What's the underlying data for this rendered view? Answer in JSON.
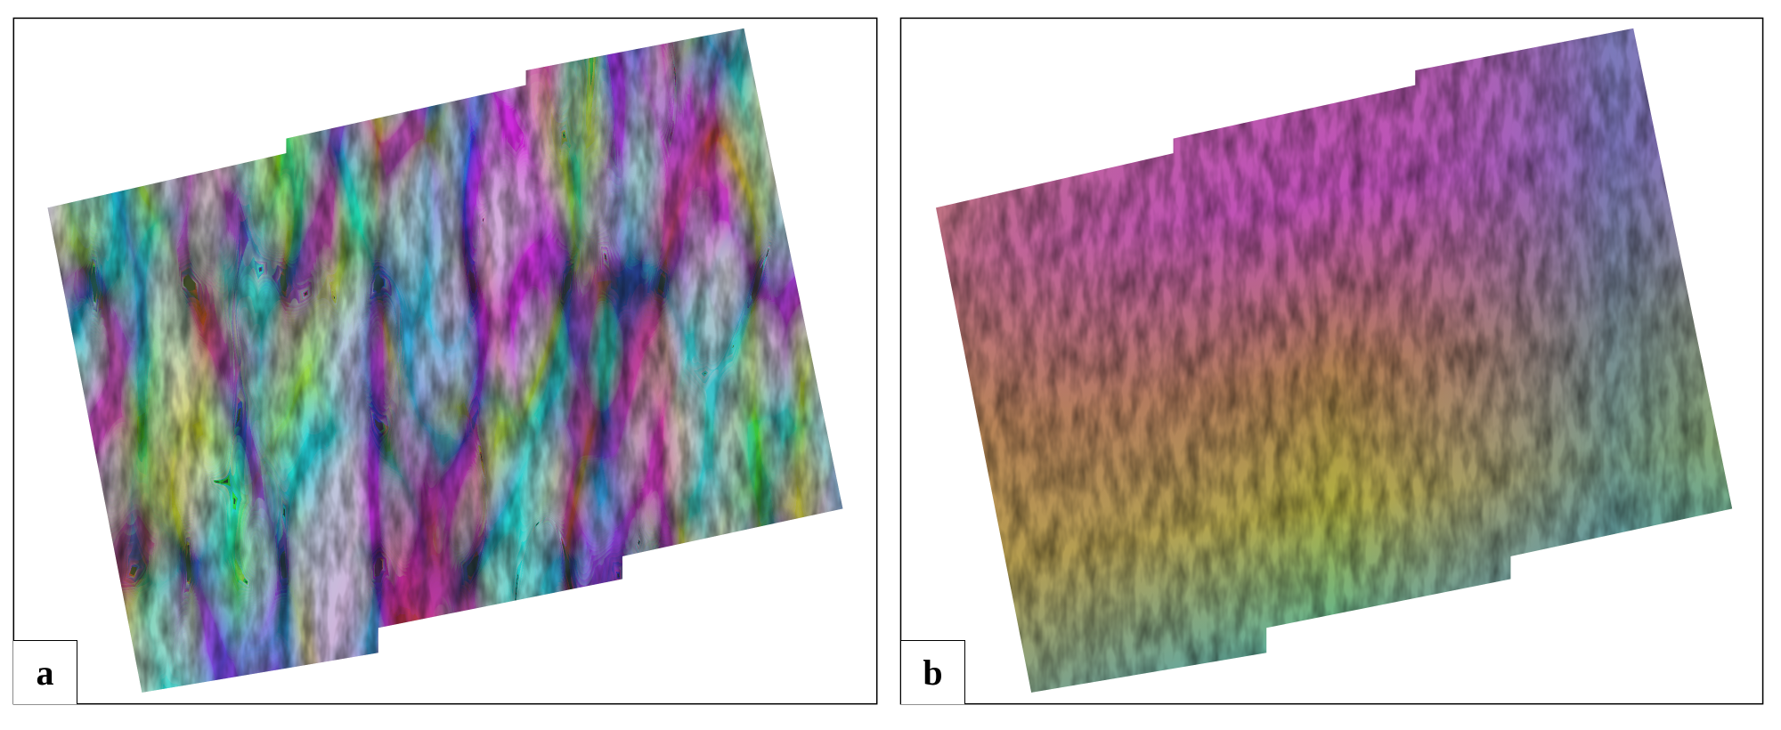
{
  "panels": [
    {
      "label": "a",
      "colors": {
        "primary": "#c040c0",
        "secondary": "#30b0b0",
        "tertiary": "#b0b040",
        "shade": "#808080"
      }
    },
    {
      "label": "b",
      "colors": {
        "primary": "#c050b0",
        "secondary": "#c09050",
        "tertiary": "#b0b040",
        "shade": "#40b0b0"
      }
    }
  ]
}
